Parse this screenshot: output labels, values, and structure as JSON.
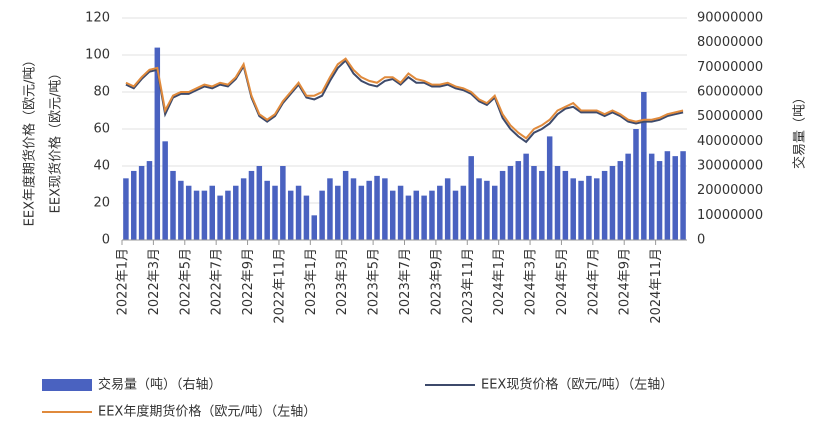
{
  "chart_data": {
    "type": "bar-line",
    "ylabel": [
      "EEX年度期货价格（欧元/吨）",
      "EEX现货价格（欧元/吨）"
    ],
    "y2label": "交易量（吨）",
    "categories": [
      "2022年1月",
      null,
      null,
      null,
      "2022年3月",
      null,
      null,
      null,
      "2022年5月",
      null,
      null,
      null,
      "2022年7月",
      null,
      null,
      null,
      "2022年9月",
      null,
      null,
      null,
      "2022年11月",
      null,
      null,
      null,
      "2023年1月",
      null,
      null,
      null,
      "2023年3月",
      null,
      null,
      null,
      "2023年5月",
      null,
      null,
      null,
      "2023年7月",
      null,
      null,
      null,
      "2023年9月",
      null,
      null,
      null,
      "2023年11月",
      null,
      null,
      null,
      "2024年1月",
      null,
      null,
      null,
      "2024年3月",
      null,
      null,
      null,
      "2024年5月",
      null,
      null,
      null,
      "2024年7月",
      null,
      null,
      null,
      "2024年9月",
      null,
      null,
      null,
      "2024年11月",
      null,
      null,
      null
    ],
    "series": [
      {
        "name": "交易量（吨）（右轴）",
        "type": "bar",
        "axis": "y2",
        "color": "#4a62c0",
        "values": [
          25000000,
          28000000,
          30000000,
          32000000,
          78000000,
          40000000,
          28000000,
          24000000,
          22000000,
          20000000,
          20000000,
          22000000,
          18000000,
          20000000,
          22000000,
          25000000,
          28000000,
          30000000,
          24000000,
          22000000,
          30000000,
          20000000,
          22000000,
          18000000,
          10000000,
          20000000,
          25000000,
          22000000,
          28000000,
          25000000,
          22000000,
          24000000,
          26000000,
          25000000,
          20000000,
          22000000,
          18000000,
          20000000,
          18000000,
          20000000,
          22000000,
          25000000,
          20000000,
          22000000,
          34000000,
          25000000,
          24000000,
          22000000,
          28000000,
          30000000,
          32000000,
          35000000,
          30000000,
          28000000,
          42000000,
          30000000,
          28000000,
          25000000,
          24000000,
          26000000,
          25000000,
          28000000,
          30000000,
          32000000,
          35000000,
          45000000,
          60000000,
          35000000,
          32000000,
          36000000,
          34000000,
          36000000
        ]
      },
      {
        "name": "EEX现货价格（欧元/吨）（左轴）",
        "type": "line",
        "color": "#3d4a6b",
        "values": [
          84,
          82,
          87,
          91,
          92,
          68,
          77,
          79,
          79,
          81,
          83,
          82,
          84,
          83,
          87,
          94,
          77,
          67,
          64,
          67,
          74,
          79,
          84,
          77,
          76,
          78,
          86,
          93,
          97,
          90,
          86,
          84,
          83,
          86,
          87,
          84,
          88,
          85,
          85,
          83,
          83,
          84,
          82,
          81,
          79,
          75,
          73,
          77,
          66,
          60,
          56,
          53,
          58,
          60,
          63,
          68,
          71,
          72,
          69,
          69,
          69,
          67,
          69,
          67,
          64,
          63,
          64,
          64,
          65,
          67,
          68,
          69
        ]
      },
      {
        "name": "EEX年度期货价格（欧元/吨）（左轴）",
        "type": "line",
        "color": "#e08a3c",
        "values": [
          85,
          83,
          88,
          92,
          93,
          70,
          78,
          80,
          80,
          82,
          84,
          83,
          85,
          84,
          88,
          95,
          78,
          68,
          65,
          68,
          75,
          80,
          85,
          78,
          78,
          80,
          88,
          95,
          98,
          92,
          88,
          86,
          85,
          88,
          88,
          85,
          90,
          87,
          86,
          84,
          84,
          85,
          83,
          82,
          80,
          76,
          74,
          78,
          68,
          62,
          58,
          55,
          60,
          62,
          65,
          70,
          72,
          74,
          70,
          70,
          70,
          68,
          70,
          68,
          65,
          64,
          65,
          65,
          66,
          68,
          69,
          70
        ]
      }
    ],
    "ylim": [
      0,
      120
    ],
    "yticks": [
      0,
      20,
      40,
      60,
      80,
      100,
      120
    ],
    "y2lim": [
      0,
      90000000
    ],
    "y2ticks": [
      0,
      10000000,
      20000000,
      30000000,
      40000000,
      50000000,
      60000000,
      70000000,
      80000000,
      90000000
    ],
    "grid": true
  }
}
